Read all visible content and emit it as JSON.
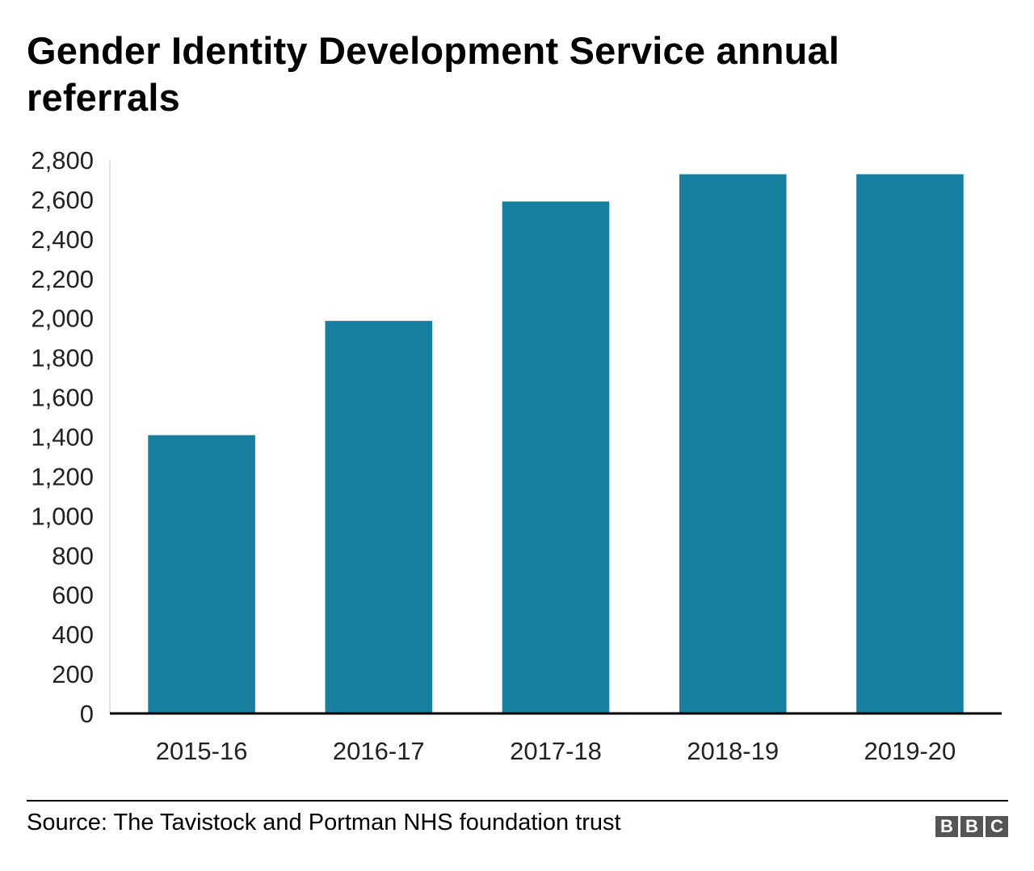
{
  "chart_data": {
    "type": "bar",
    "title": "Gender Identity Development Service annual referrals",
    "categories": [
      "2015-16",
      "2016-17",
      "2017-18",
      "2018-19",
      "2019-20"
    ],
    "values": [
      1408,
      1986,
      2590,
      2728,
      2728
    ],
    "yticks": [
      "0",
      "200",
      "400",
      "600",
      "800",
      "1,000",
      "1,200",
      "1,400",
      "1,600",
      "1,800",
      "2,000",
      "2,200",
      "2,400",
      "2,600",
      "2,800"
    ],
    "ylim": [
      0,
      2800
    ],
    "xlabel": "",
    "ylabel": "",
    "grid": false,
    "legend": "none",
    "colors": {
      "bar": "#1780a1",
      "axis": "#000000",
      "text": "#222222"
    }
  },
  "footer": {
    "source": "Source: The Tavistock and Portman NHS foundation trust",
    "brand": [
      "B",
      "B",
      "C"
    ]
  }
}
